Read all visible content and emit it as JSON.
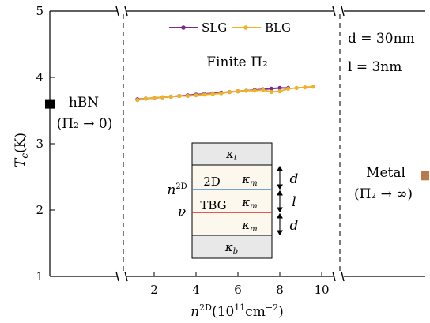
{
  "chart_data": {
    "type": "line",
    "x_label": "n^{2D} (10^{11} cm^{-2})",
    "y_label": "T_c (K)",
    "x_ticks": [
      "2",
      "4",
      "6",
      "8",
      "10"
    ],
    "y_ticks": [
      "1",
      "2",
      "3",
      "4",
      "5"
    ],
    "xlim": [
      0,
      10.8
    ],
    "ylim": [
      1,
      5
    ],
    "series": [
      {
        "name": "SLG",
        "color": "#7d2a8e",
        "x": [
          1.2,
          1.6,
          2.0,
          2.4,
          2.8,
          3.2,
          3.6,
          4.0,
          4.4,
          4.8,
          5.2,
          5.6,
          6.0,
          6.4,
          6.8,
          7.2,
          7.6,
          8.0,
          8.4
        ],
        "y": [
          3.67,
          3.68,
          3.69,
          3.7,
          3.71,
          3.72,
          3.73,
          3.74,
          3.75,
          3.76,
          3.77,
          3.78,
          3.79,
          3.8,
          3.81,
          3.82,
          3.83,
          3.84,
          3.84
        ]
      },
      {
        "name": "BLG",
        "color": "#efb12a",
        "x": [
          1.2,
          1.6,
          2.0,
          2.4,
          2.8,
          3.2,
          3.6,
          4.0,
          4.4,
          4.8,
          5.2,
          5.6,
          6.0,
          6.4,
          6.8,
          7.2,
          7.6,
          8.0,
          8.4,
          8.8,
          9.2,
          9.6
        ],
        "y": [
          3.66,
          3.68,
          3.69,
          3.7,
          3.71,
          3.72,
          3.72,
          3.73,
          3.74,
          3.75,
          3.76,
          3.78,
          3.79,
          3.8,
          3.8,
          3.81,
          3.78,
          3.79,
          3.83,
          3.84,
          3.85,
          3.86
        ]
      }
    ],
    "hbn": {
      "label": "hBN",
      "sub": "(Π₂ → 0)",
      "value": 3.6,
      "color": "#000000"
    },
    "metal": {
      "label": "Metal",
      "sub": "(Π₂ → ∞)",
      "value": 2.52,
      "color": "#b87a4b"
    },
    "center_label": "Finite Π₂",
    "params": [
      "d = 30nm",
      "l = 3nm"
    ],
    "inset": {
      "kappa_t": "κt",
      "kappa_b": "κb",
      "kappa_m": "κm",
      "layer_2d": "2D",
      "layer_tbg": "TBG",
      "n2d": "n2D",
      "nu": "ν",
      "d": "d",
      "l": "l"
    }
  }
}
